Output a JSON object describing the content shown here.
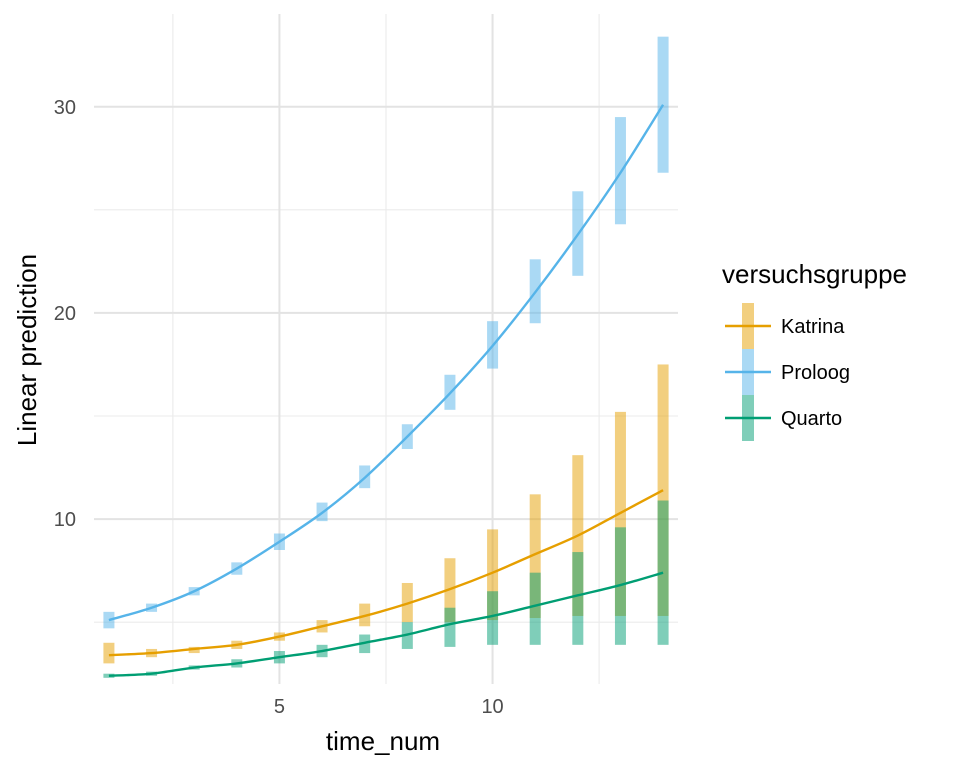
{
  "chart_data": {
    "type": "line",
    "xlabel": "time_num",
    "ylabel": "Linear prediction",
    "xlim": [
      0.65,
      14.35
    ],
    "ylim": [
      2.0,
      34.5
    ],
    "x_ticks": [
      5,
      10
    ],
    "y_ticks": [
      10,
      20,
      30
    ],
    "grid": true,
    "legend": {
      "title": "versuchsgruppe",
      "position": "right"
    },
    "x": [
      1,
      2,
      3,
      4,
      5,
      6,
      7,
      8,
      9,
      10,
      11,
      12,
      13,
      14
    ],
    "series": [
      {
        "name": "Katrina",
        "color": "#E69F00",
        "values": [
          3.4,
          3.5,
          3.7,
          3.9,
          4.3,
          4.8,
          5.3,
          5.9,
          6.6,
          7.4,
          8.3,
          9.2,
          10.3,
          11.4
        ],
        "lower": [
          3.0,
          3.3,
          3.5,
          3.7,
          4.1,
          4.5,
          4.8,
          5.0,
          5.0,
          5.1,
          5.2,
          5.3,
          5.3,
          5.3
        ],
        "upper": [
          4.0,
          3.7,
          3.8,
          4.1,
          4.5,
          5.1,
          5.9,
          6.9,
          8.1,
          9.5,
          11.2,
          13.1,
          15.2,
          17.5
        ]
      },
      {
        "name": "Proloog",
        "color": "#56B4E9",
        "values": [
          5.1,
          5.7,
          6.5,
          7.6,
          8.9,
          10.3,
          12.0,
          14.0,
          16.1,
          18.4,
          21.0,
          23.8,
          26.8,
          30.1
        ],
        "lower": [
          4.7,
          5.5,
          6.3,
          7.3,
          8.5,
          9.9,
          11.5,
          13.4,
          15.3,
          17.3,
          19.5,
          21.8,
          24.3,
          26.8
        ],
        "upper": [
          5.5,
          5.9,
          6.7,
          7.9,
          9.3,
          10.8,
          12.6,
          14.6,
          17.0,
          19.6,
          22.6,
          25.9,
          29.5,
          33.4
        ]
      },
      {
        "name": "Quarto",
        "color": "#009E73",
        "values": [
          2.4,
          2.5,
          2.8,
          3.0,
          3.3,
          3.6,
          4.0,
          4.4,
          4.9,
          5.3,
          5.8,
          6.3,
          6.8,
          7.4
        ],
        "lower": [
          2.3,
          2.4,
          2.7,
          2.8,
          3.0,
          3.3,
          3.5,
          3.7,
          3.8,
          3.9,
          3.9,
          3.9,
          3.9,
          3.9
        ],
        "upper": [
          2.5,
          2.6,
          2.9,
          3.2,
          3.6,
          3.9,
          4.4,
          5.0,
          5.7,
          6.5,
          7.4,
          8.4,
          9.6,
          10.9
        ]
      }
    ]
  }
}
